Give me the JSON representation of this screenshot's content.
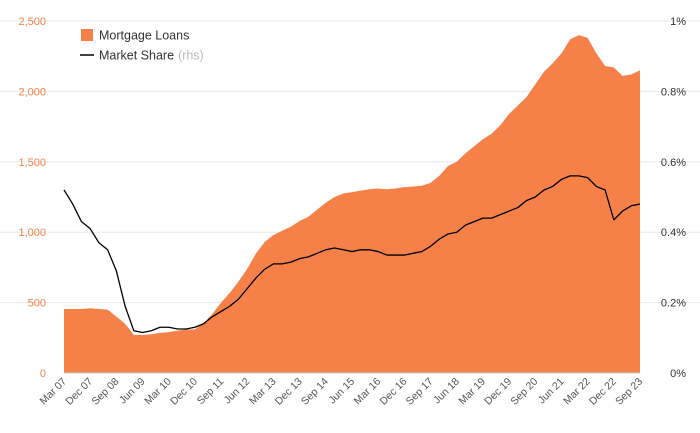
{
  "chart_data": {
    "type": "area",
    "x": [
      "Mar 07",
      "Jun 07",
      "Sep 07",
      "Dec 07",
      "Mar 08",
      "Jun 08",
      "Sep 08",
      "Dec 08",
      "Mar 09",
      "Jun 09",
      "Sep 09",
      "Dec 09",
      "Mar 10",
      "Jun 10",
      "Sep 10",
      "Dec 10",
      "Mar 11",
      "Jun 11",
      "Sep 11",
      "Dec 11",
      "Mar 12",
      "Jun 12",
      "Sep 12",
      "Dec 12",
      "Mar 13",
      "Jun 13",
      "Sep 13",
      "Dec 13",
      "Mar 14",
      "Jun 14",
      "Sep 14",
      "Dec 14",
      "Mar 15",
      "Jun 15",
      "Sep 15",
      "Dec 15",
      "Mar 16",
      "Jun 16",
      "Sep 16",
      "Dec 16",
      "Mar 17",
      "Jun 17",
      "Sep 17",
      "Dec 17",
      "Mar 18",
      "Jun 18",
      "Sep 18",
      "Dec 18",
      "Mar 19",
      "Jun 19",
      "Sep 19",
      "Dec 19",
      "Mar 20",
      "Jun 20",
      "Sep 20",
      "Dec 20",
      "Mar 21",
      "Jun 21",
      "Sep 21",
      "Dec 21",
      "Mar 22",
      "Jun 22",
      "Sep 22",
      "Dec 22",
      "Mar 23",
      "Jun 23",
      "Sep 23"
    ],
    "x_tick_labels": [
      "Mar 07",
      "Dec 07",
      "Sep 08",
      "Jun 09",
      "Mar 10",
      "Dec 10",
      "Sep 11",
      "Jun 12",
      "Mar 13",
      "Dec 13",
      "Sep 14",
      "Jun 15",
      "Mar 16",
      "Dec 16",
      "Sep 17",
      "Jun 18",
      "Mar 19",
      "Dec 19",
      "Sep 20",
      "Jun 21",
      "Mar 22",
      "Dec 22",
      "Sep 23"
    ],
    "series": [
      {
        "name": "Mortgage Loans",
        "axis": "left",
        "style": "area",
        "color": "#f58149",
        "values": [
          455,
          455,
          455,
          460,
          455,
          450,
          400,
          350,
          270,
          270,
          275,
          285,
          290,
          300,
          310,
          310,
          355,
          420,
          500,
          570,
          650,
          740,
          850,
          930,
          980,
          1010,
          1040,
          1080,
          1110,
          1160,
          1210,
          1250,
          1275,
          1285,
          1295,
          1305,
          1310,
          1305,
          1310,
          1320,
          1325,
          1330,
          1350,
          1400,
          1470,
          1500,
          1560,
          1610,
          1660,
          1700,
          1760,
          1840,
          1900,
          1960,
          2050,
          2140,
          2200,
          2270,
          2370,
          2400,
          2380,
          2270,
          2180,
          2170,
          2110,
          2120,
          2150
        ]
      },
      {
        "name": "Market Share",
        "axis": "right",
        "style": "line",
        "color": "#000000",
        "values": [
          0.52,
          0.48,
          0.43,
          0.41,
          0.37,
          0.35,
          0.29,
          0.19,
          0.12,
          0.115,
          0.12,
          0.13,
          0.13,
          0.125,
          0.125,
          0.13,
          0.14,
          0.16,
          0.175,
          0.19,
          0.21,
          0.24,
          0.27,
          0.295,
          0.31,
          0.31,
          0.315,
          0.325,
          0.33,
          0.34,
          0.35,
          0.355,
          0.35,
          0.345,
          0.35,
          0.35,
          0.345,
          0.335,
          0.335,
          0.335,
          0.34,
          0.345,
          0.36,
          0.38,
          0.395,
          0.4,
          0.42,
          0.43,
          0.44,
          0.44,
          0.45,
          0.46,
          0.47,
          0.49,
          0.5,
          0.52,
          0.53,
          0.55,
          0.56,
          0.56,
          0.555,
          0.53,
          0.52,
          0.435,
          0.46,
          0.475,
          0.48
        ]
      }
    ],
    "y_left": {
      "ylim": [
        0,
        2500
      ],
      "ticks": [
        0,
        500,
        1000,
        1500,
        2000,
        2500
      ],
      "tick_labels": [
        "0",
        "500",
        "1,000",
        "1,500",
        "2,000",
        "2,500"
      ]
    },
    "y_right": {
      "ylim": [
        0,
        1
      ],
      "ticks": [
        0,
        0.2,
        0.4,
        0.6,
        0.8,
        1.0
      ],
      "tick_labels": [
        "0%",
        "0.2%",
        "0.4%",
        "0.6%",
        "0.8%",
        "1%"
      ]
    },
    "legend": {
      "placement": "top-left",
      "entries": [
        {
          "label": "Mortgage Loans",
          "note": "",
          "marker": "square",
          "color": "#f58149"
        },
        {
          "label": "Market Share",
          "note": "(rhs)",
          "marker": "line",
          "color": "#000000"
        }
      ]
    },
    "grid": true,
    "title": "",
    "xlabel": "",
    "ylabel": ""
  }
}
